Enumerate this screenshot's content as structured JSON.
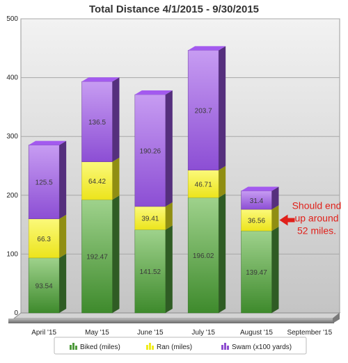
{
  "chart_data": {
    "type": "bar",
    "stacked": true,
    "title": "Total Distance 4/1/2015 - 9/30/2015",
    "xlabel": "",
    "ylabel": "",
    "ylim": [
      0,
      500
    ],
    "yticks": [
      0,
      100,
      200,
      300,
      400,
      500
    ],
    "categories": [
      "April '15",
      "May '15",
      "June '15",
      "July '15",
      "August '15",
      "September '15"
    ],
    "series": [
      {
        "name": "Biked (miles)",
        "values": [
          93.54,
          192.47,
          141.52,
          196.02,
          139.47,
          null
        ],
        "labels": [
          "93.54",
          "192.47",
          "141.52",
          "196.02",
          "139.47",
          ""
        ],
        "color": "#4e9a3c"
      },
      {
        "name": "Ran (miles)",
        "values": [
          66.3,
          64.42,
          39.41,
          46.71,
          36.56,
          null
        ],
        "labels": [
          "66.3",
          "64.42",
          "39.41",
          "46.71",
          "36.56",
          ""
        ],
        "color": "#f0ec1e"
      },
      {
        "name": "Swam (x100 yards)",
        "values": [
          125.5,
          136.5,
          190.26,
          203.7,
          31.4,
          null
        ],
        "labels": [
          "125.5",
          "136.5",
          "190.26",
          "203.7",
          "31.4",
          ""
        ],
        "color": "#8e4ed0"
      }
    ],
    "grid": true,
    "legend": "bottom",
    "annotation": {
      "lines": [
        "Should end",
        "up around",
        "52 miles."
      ],
      "color": "#e0201a",
      "target_category": "August '15",
      "target_series": "Ran (miles)"
    }
  }
}
